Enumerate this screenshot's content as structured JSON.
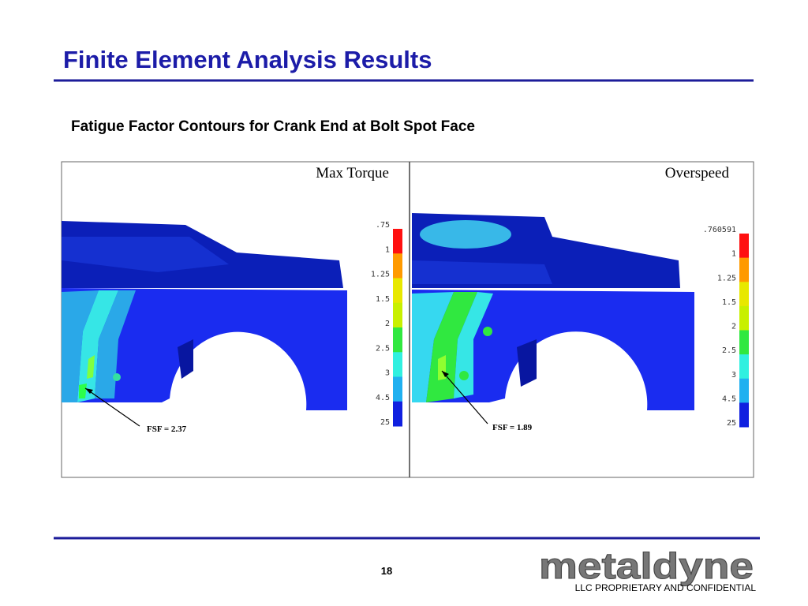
{
  "header": {
    "title": "Finite Element Analysis Results",
    "subtitle": "Fatigue Factor Contours for Crank End at Bolt Spot Face"
  },
  "panels": [
    {
      "label": "Max Torque",
      "legend": [
        ".75",
        "1",
        "1.25",
        "1.5",
        "2",
        "2.5",
        "3",
        "4.5",
        "25"
      ],
      "annotation": "FSF = 2.37"
    },
    {
      "label": "Overspeed",
      "legend": [
        ".760591",
        "1",
        "1.25",
        "1.5",
        "2",
        "2.5",
        "3",
        "4.5",
        "25"
      ],
      "annotation": "FSF = 1.89"
    }
  ],
  "footer": {
    "page": "18",
    "logo": "metaldyne",
    "notice": "LLC PROPRIETARY AND CONFIDENTIAL"
  }
}
